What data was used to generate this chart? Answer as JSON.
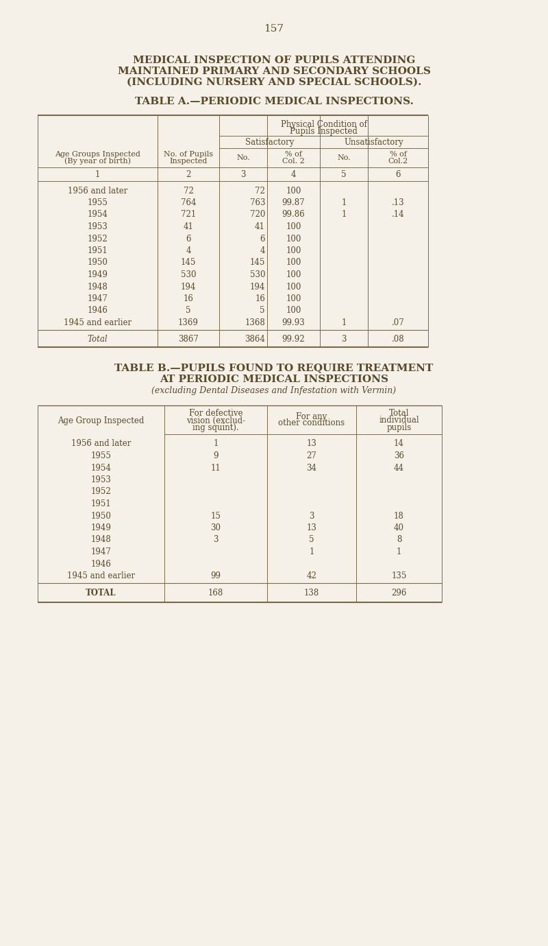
{
  "page_number": "157",
  "main_title_line1": "MEDICAL INSPECTION OF PUPILS ATTENDING",
  "main_title_line2": "MAINTAINED PRIMARY AND SECONDARY SCHOOLS",
  "main_title_line3": "(INCLUDING NURSERY AND SPECIAL SCHOOLS).",
  "table_a_title": "TABLE A.—PERIODIC MEDICAL INSPECTIONS.",
  "table_a_rows": [
    [
      "1956 and later",
      "72",
      "72",
      "100",
      "",
      ""
    ],
    [
      "1955",
      "764",
      "763",
      "99.87",
      "1",
      ".13"
    ],
    [
      "1954",
      "721",
      "720",
      "99.86",
      "1",
      ".14"
    ],
    [
      "1953",
      "41",
      "41",
      "100",
      "",
      ""
    ],
    [
      "1952",
      "6",
      "6",
      "100",
      "",
      ""
    ],
    [
      "1951",
      "4",
      "4",
      "100",
      "",
      ""
    ],
    [
      "1950",
      "145",
      "145",
      "100",
      "",
      ""
    ],
    [
      "1949",
      "530",
      "530",
      "100",
      "",
      ""
    ],
    [
      "1948",
      "194",
      "194",
      "100",
      "",
      ""
    ],
    [
      "1947",
      "16",
      "16",
      "100",
      "",
      ""
    ],
    [
      "1946",
      "5",
      "5",
      "100",
      "",
      ""
    ],
    [
      "1945 and earlier",
      "1369",
      "1368",
      "99.93",
      "1",
      ".07"
    ]
  ],
  "table_a_total": [
    "Total",
    "3867",
    "3864",
    "99.92",
    "3",
    ".08"
  ],
  "table_b_title_line1": "TABLE B.—PUPILS FOUND TO REQUIRE TREATMENT",
  "table_b_title_line2": "AT PERIODIC MEDICAL INSPECTIONS",
  "table_b_title_line3": "(excluding Dental Diseases and Infestation with Vermin)",
  "table_b_rows": [
    [
      "1956 and later",
      "1",
      "13",
      "14"
    ],
    [
      "1955",
      "9",
      "27",
      "36"
    ],
    [
      "1954",
      "11",
      "34",
      "44"
    ],
    [
      "1953",
      "",
      "",
      ""
    ],
    [
      "1952",
      "",
      "",
      ""
    ],
    [
      "1951",
      "",
      "",
      ""
    ],
    [
      "1950",
      "15",
      "3",
      "18"
    ],
    [
      "1949",
      "30",
      "13",
      "40"
    ],
    [
      "1948",
      "3",
      "5",
      "8"
    ],
    [
      "1947",
      "",
      "1",
      "1"
    ],
    [
      "1946",
      "",
      "",
      ""
    ],
    [
      "1945 and earlier",
      "99",
      "42",
      "135"
    ]
  ],
  "table_b_total": [
    "TOTAL",
    "168",
    "138",
    "296"
  ],
  "bg_color": "#f5f0e8",
  "text_color": "#5a4a2a",
  "line_color": "#7a6a4a"
}
